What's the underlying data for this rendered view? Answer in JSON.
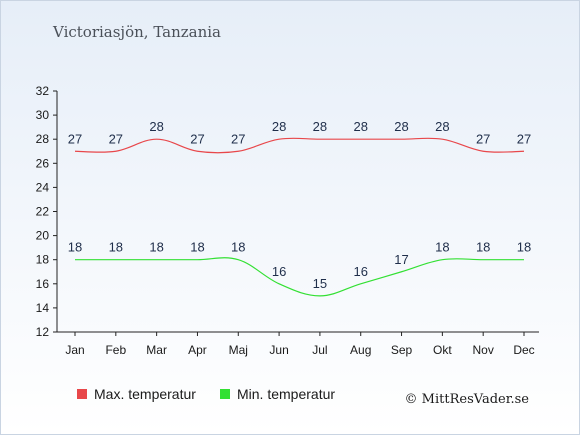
{
  "chart_data": {
    "type": "line",
    "title": "Victoriasjön, Tanzania",
    "categories": [
      "Jan",
      "Feb",
      "Mar",
      "Apr",
      "Maj",
      "Jun",
      "Jul",
      "Aug",
      "Sep",
      "Okt",
      "Nov",
      "Dec"
    ],
    "series": [
      {
        "name": "Max. temperatur",
        "color": "#e8474a",
        "values": [
          27,
          27,
          28,
          27,
          27,
          28,
          28,
          28,
          28,
          28,
          27,
          27
        ]
      },
      {
        "name": "Min. temperatur",
        "color": "#33e033",
        "values": [
          18,
          18,
          18,
          18,
          18,
          16,
          15,
          16,
          17,
          18,
          18,
          18
        ]
      }
    ],
    "ylim": [
      12,
      32
    ],
    "yticks": [
      12,
      14,
      16,
      18,
      20,
      22,
      24,
      26,
      28,
      30,
      32
    ],
    "grid": false,
    "legend_position": "bottom"
  },
  "credit": "© MittResVader.se"
}
